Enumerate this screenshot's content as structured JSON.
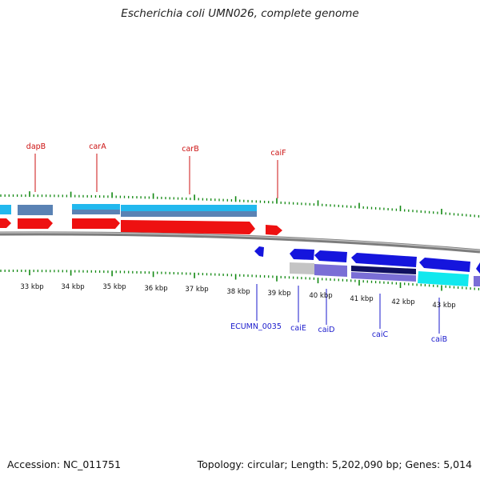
{
  "title": "Escherichia coli UMN026, complete genome",
  "footer": {
    "accession": "Accession: NC_011751",
    "summary": "Topology: circular; Length: 5,202,090 bp; Genes: 5,014"
  },
  "colors": {
    "forward_cds": "#ee1111",
    "reverse_cds": "#1515dd",
    "light_blue": "#22b8ee",
    "steel_blue": "#5a82b4",
    "cyan": "#11e8ee",
    "slate_purple": "#7a6ed6",
    "navy": "#101060",
    "grey": "#c4c4c4",
    "tick_green": "#118811",
    "backbone": "#8a8a8a"
  },
  "scale_labels": [
    "33 kbp",
    "34 kbp",
    "35 kbp",
    "36 kbp",
    "37 kbp",
    "38 kbp",
    "39 kbp",
    "40 kbp",
    "41 kbp",
    "42 kbp",
    "43 kbp"
  ],
  "top_genes": [
    "dapB",
    "carA",
    "carB",
    "caiF"
  ],
  "bottom_genes": [
    "ECUMN_0035",
    "caiE",
    "caiD",
    "caiC",
    "caiB"
  ]
}
